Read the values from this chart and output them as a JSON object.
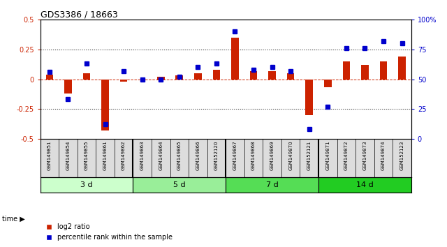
{
  "title": "GDS3386 / 18663",
  "samples": [
    "GSM149851",
    "GSM149854",
    "GSM149855",
    "GSM149861",
    "GSM149862",
    "GSM149863",
    "GSM149864",
    "GSM149865",
    "GSM149866",
    "GSM152120",
    "GSM149867",
    "GSM149868",
    "GSM149869",
    "GSM149870",
    "GSM152121",
    "GSM149871",
    "GSM149872",
    "GSM149873",
    "GSM149874",
    "GSM152123"
  ],
  "log2_ratio": [
    0.04,
    -0.12,
    0.05,
    -0.43,
    -0.02,
    -0.01,
    0.02,
    0.03,
    0.05,
    0.08,
    0.35,
    0.07,
    0.07,
    0.05,
    -0.3,
    -0.07,
    0.15,
    0.12,
    0.15,
    0.19
  ],
  "percentile": [
    56,
    33,
    63,
    12,
    57,
    50,
    50,
    52,
    60,
    63,
    90,
    58,
    60,
    57,
    8,
    27,
    76,
    76,
    82,
    80
  ],
  "groups": [
    {
      "label": "3 d",
      "start": 0,
      "end": 5,
      "color": "#ccffcc"
    },
    {
      "label": "5 d",
      "start": 5,
      "end": 10,
      "color": "#99ee99"
    },
    {
      "label": "7 d",
      "start": 10,
      "end": 15,
      "color": "#55dd55"
    },
    {
      "label": "14 d",
      "start": 15,
      "end": 20,
      "color": "#22cc22"
    }
  ],
  "ylim_left": [
    -0.5,
    0.5
  ],
  "ylim_right": [
    0,
    100
  ],
  "yticks_left": [
    -0.5,
    -0.25,
    0.0,
    0.25,
    0.5
  ],
  "yticks_right": [
    0,
    25,
    50,
    75,
    100
  ],
  "ytick_labels_left": [
    "-0.5",
    "-0.25",
    "0",
    "0.25",
    "0.5"
  ],
  "ytick_labels_right": [
    "0",
    "25",
    "50",
    "75",
    "100%"
  ],
  "bar_color": "#cc2200",
  "dot_color": "#0000cc",
  "bg_color": "#ffffff",
  "tick_bg_color": "#dddddd",
  "tick_label_color_left": "#cc2200",
  "tick_label_color_right": "#0000cc",
  "legend_red": "log2 ratio",
  "legend_blue": "percentile rank within the sample",
  "group_separator_color": "#000000"
}
